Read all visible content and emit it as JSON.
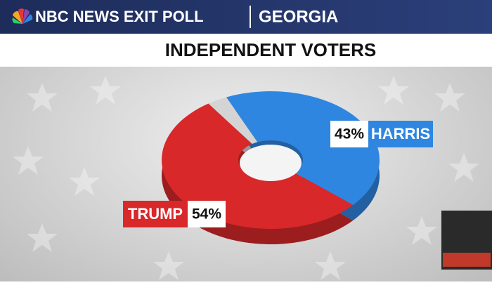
{
  "header": {
    "brand": "NBC NEWS EXIT POLL",
    "state": "GEORGIA"
  },
  "chart_data": {
    "type": "donut",
    "title": "INDEPENDENT VOTERS",
    "categories": [
      "HARRIS",
      "TRUMP",
      null
    ],
    "values": [
      43,
      54,
      3
    ],
    "value_labels": [
      "43%",
      "54%",
      null
    ],
    "colors": [
      "#2f86e0",
      "#d8282a",
      "#d4d4d4"
    ]
  }
}
